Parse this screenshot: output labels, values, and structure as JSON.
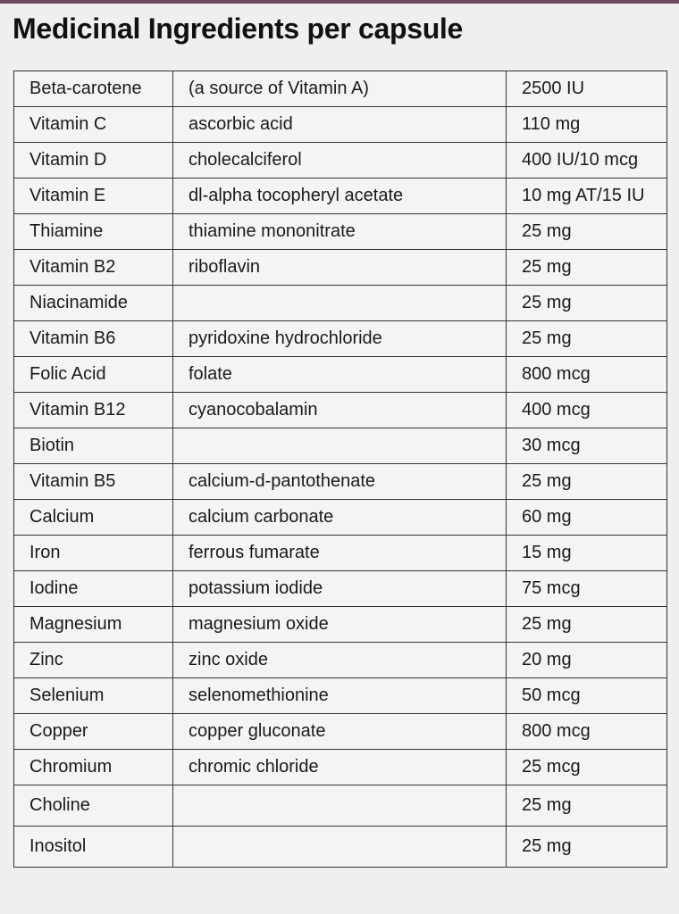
{
  "title": "Medicinal Ingredients per capsule",
  "ingredients": [
    {
      "name": "Beta-carotene",
      "source": "(a source of Vitamin A)",
      "amount": "2500 IU"
    },
    {
      "name": "Vitamin C",
      "source": "ascorbic acid",
      "amount": "110 mg"
    },
    {
      "name": "Vitamin D",
      "source": "cholecalciferol",
      "amount": "400 IU/10 mcg"
    },
    {
      "name": "Vitamin E",
      "source": "dl-alpha tocopheryl acetate",
      "amount": "10 mg AT/15 IU"
    },
    {
      "name": "Thiamine",
      "source": "thiamine mononitrate",
      "amount": "25 mg"
    },
    {
      "name": "Vitamin B2",
      "source": "riboflavin",
      "amount": "25 mg"
    },
    {
      "name": "Niacinamide",
      "source": "",
      "amount": "25 mg"
    },
    {
      "name": "Vitamin B6",
      "source": "pyridoxine hydrochloride",
      "amount": "25 mg"
    },
    {
      "name": "Folic Acid",
      "source": "folate",
      "amount": "800 mcg"
    },
    {
      "name": "Vitamin B12",
      "source": "cyanocobalamin",
      "amount": "400 mcg"
    },
    {
      "name": "Biotin",
      "source": "",
      "amount": "30 mcg"
    },
    {
      "name": "Vitamin B5",
      "source": "calcium-d-pantothenate",
      "amount": "25 mg"
    },
    {
      "name": "Calcium",
      "source": "calcium carbonate",
      "amount": "60 mg"
    },
    {
      "name": "Iron",
      "source": "ferrous fumarate",
      "amount": "15 mg"
    },
    {
      "name": "Iodine",
      "source": "potassium iodide",
      "amount": "75 mcg"
    },
    {
      "name": "Magnesium",
      "source": "magnesium oxide",
      "amount": "25 mg"
    },
    {
      "name": "Zinc",
      "source": "zinc oxide",
      "amount": "20 mg"
    },
    {
      "name": "Selenium",
      "source": "selenomethionine",
      "amount": "50 mcg"
    },
    {
      "name": "Copper",
      "source": "copper gluconate",
      "amount": "800 mcg"
    },
    {
      "name": "Chromium",
      "source": "chromic chloride",
      "amount": "25 mcg"
    },
    {
      "name": "Choline",
      "source": "",
      "amount": "25 mg"
    },
    {
      "name": "Inositol",
      "source": "",
      "amount": "25 mg"
    }
  ]
}
